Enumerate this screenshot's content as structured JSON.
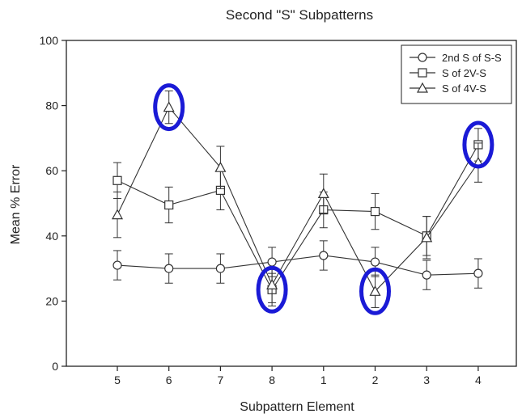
{
  "chart_data": {
    "type": "line",
    "title": "Second \"S\" Subpatterns",
    "xlabel": "Subpattern Element",
    "ylabel": "Mean % Error",
    "categories": [
      "5",
      "6",
      "7",
      "8",
      "1",
      "2",
      "3",
      "4"
    ],
    "ylim": [
      0,
      100
    ],
    "yticks": [
      0,
      20,
      40,
      60,
      80,
      100
    ],
    "grid": false,
    "legend_position": "top-right",
    "series": [
      {
        "name": "2nd S of S-S",
        "marker": "circle",
        "values": [
          31,
          30,
          30,
          32,
          34,
          32,
          28,
          28.5
        ],
        "errors": [
          4.5,
          4.5,
          4.5,
          4.5,
          4.5,
          4.5,
          4.5,
          4.5
        ]
      },
      {
        "name": "S of 2V-S",
        "marker": "square",
        "values": [
          57,
          49.5,
          54,
          23.5,
          48,
          47.5,
          40,
          68
        ],
        "errors": [
          5.5,
          5.5,
          6,
          5,
          5.5,
          5.5,
          6,
          5
        ]
      },
      {
        "name": "S of 4V-S",
        "marker": "triangle",
        "values": [
          46.5,
          79.5,
          61,
          25,
          53,
          23,
          39.5,
          62.5
        ],
        "errors": [
          7,
          5,
          6.5,
          5.5,
          6,
          5,
          6.5,
          6
        ]
      }
    ],
    "highlights": [
      {
        "category": "6",
        "series": "S of 4V-S",
        "color": "#1a1ad6"
      },
      {
        "category": "8",
        "series": "S of 2V-S",
        "color": "#1a1ad6"
      },
      {
        "category": "2",
        "series": "S of 4V-S",
        "color": "#1a1ad6"
      },
      {
        "category": "4",
        "series": "S of 2V-S",
        "color": "#1a1ad6"
      }
    ],
    "colors": {
      "lines": "#333333",
      "highlight": "#1a1ad6"
    }
  }
}
